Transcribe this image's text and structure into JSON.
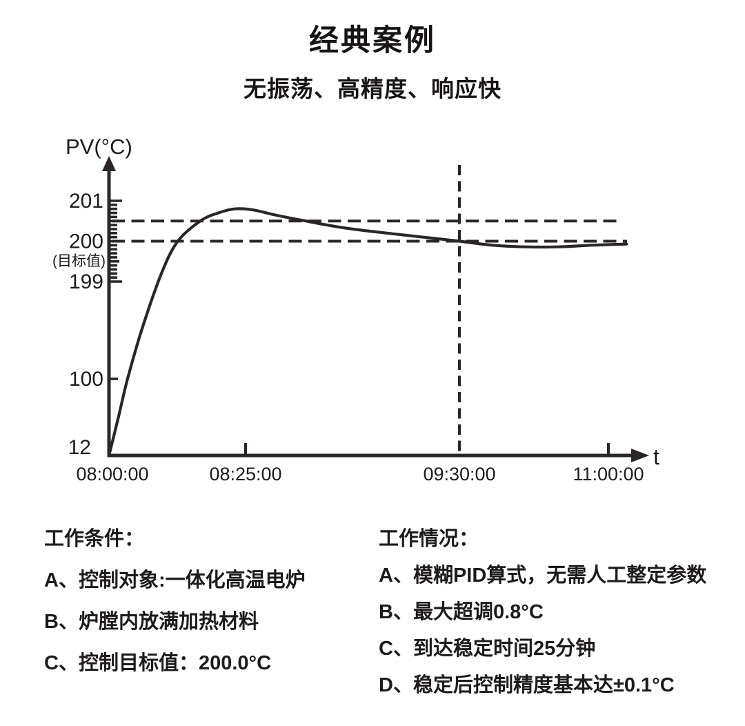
{
  "page": {
    "title": "经典案例",
    "subtitle": "无振荡、高精度、响应快"
  },
  "colors": {
    "ink": "#2a2627"
  },
  "chart_data": {
    "type": "line",
    "title": "",
    "ylabel": "PV(°C)",
    "xlabel": "t",
    "y_axis": {
      "broken_scale": true,
      "ticks": [
        {
          "label": "201",
          "value": 201
        },
        {
          "label": "200",
          "value": 200,
          "sublabel": "(目标值)"
        },
        {
          "label": "199",
          "value": 199
        },
        {
          "label": "100",
          "value": 100
        },
        {
          "label": "12",
          "value": 12
        }
      ],
      "minor_tick_range": {
        "from": 199,
        "to": 201,
        "step": 0.1
      }
    },
    "x_axis": {
      "ticks": [
        {
          "label": "08:00:00",
          "min": 0,
          "mark": false,
          "vline": false
        },
        {
          "label": "08:25:00",
          "min": 25,
          "mark": true,
          "vline": false
        },
        {
          "label": "09:30:00",
          "min": 90,
          "mark": false,
          "vline": true
        },
        {
          "label": "11:00:00",
          "min": 180,
          "mark": true,
          "vline": false
        }
      ]
    },
    "reference_lines": {
      "target": 200.0,
      "upper_band": 200.5
    },
    "series": [
      {
        "name": "PV",
        "overshoot_peak_degC": 200.8,
        "points_min_degC": [
          [
            0,
            12
          ],
          [
            1.8,
            58
          ],
          [
            3.4,
            100
          ],
          [
            6.0,
            150
          ],
          [
            9.6,
            199.2
          ],
          [
            12.6,
            200.0
          ],
          [
            16.7,
            200.5
          ],
          [
            20,
            200.7
          ],
          [
            23,
            200.8
          ],
          [
            27,
            200.78
          ],
          [
            34,
            200.65
          ],
          [
            42,
            200.52
          ],
          [
            55,
            200.33
          ],
          [
            68,
            200.2
          ],
          [
            80,
            200.09
          ],
          [
            90,
            200.0
          ],
          [
            110,
            199.9
          ],
          [
            130,
            199.86
          ],
          [
            150,
            199.86
          ],
          [
            170,
            199.9
          ],
          [
            191,
            199.93
          ]
        ]
      }
    ]
  },
  "notes_left": {
    "heading": "工作条件：",
    "items": [
      "A、控制对象:一体化高温电炉",
      "B、炉膛内放满加热材料",
      "C、控制目标值：200.0°C"
    ]
  },
  "notes_right": {
    "heading": "工作情况：",
    "items": [
      "A、模糊PID算式，无需人工整定参数",
      "B、最大超调0.8°C",
      "C、到达稳定时间25分钟",
      "D、稳定后控制精度基本达±0.1°C"
    ]
  }
}
